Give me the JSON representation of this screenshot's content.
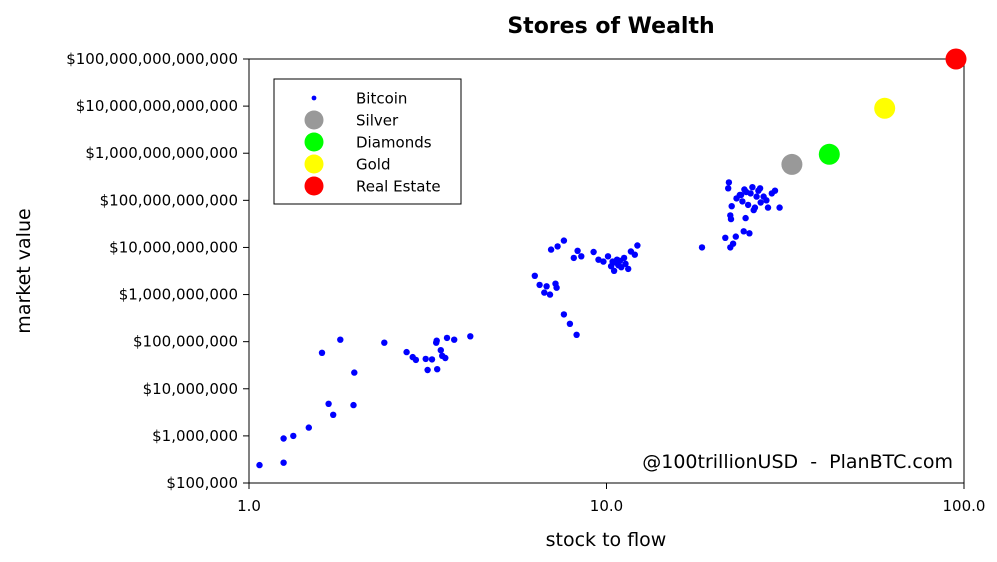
{
  "chart_data": {
    "type": "scatter",
    "title": "Stores of Wealth",
    "xlabel": "stock to flow",
    "ylabel": "market value",
    "xscale": "log",
    "yscale": "log",
    "xlim": [
      1.0,
      100.0
    ],
    "ylim": [
      100000,
      100000000000000
    ],
    "x_ticks": [
      {
        "value": 1.0,
        "label": "1.0"
      },
      {
        "value": 10.0,
        "label": "10.0"
      },
      {
        "value": 100.0,
        "label": "100.0"
      }
    ],
    "y_ticks": [
      {
        "value": 100000,
        "label": "$100,000"
      },
      {
        "value": 1000000,
        "label": "$1,000,000"
      },
      {
        "value": 10000000,
        "label": "$10,000,000"
      },
      {
        "value": 100000000,
        "label": "$100,000,000"
      },
      {
        "value": 1000000000,
        "label": "$1,000,000,000"
      },
      {
        "value": 10000000000,
        "label": "$10,000,000,000"
      },
      {
        "value": 100000000000,
        "label": "$100,000,000,000"
      },
      {
        "value": 1000000000000,
        "label": "$1,000,000,000,000"
      },
      {
        "value": 10000000000000,
        "label": "$10,000,000,000,000"
      },
      {
        "value": 100000000000000,
        "label": "$100,000,000,000,000"
      }
    ],
    "grid": false,
    "legend_position": "top-left",
    "annotation": "@100trillionUSD  -  PlanBTC.com",
    "series": [
      {
        "name": "Bitcoin",
        "color": "#0000ff",
        "marker": "small",
        "points": [
          [
            1.07,
            240000
          ],
          [
            1.25,
            270000
          ],
          [
            1.25,
            880000
          ],
          [
            1.33,
            1000000
          ],
          [
            1.47,
            1500000
          ],
          [
            1.67,
            4800000
          ],
          [
            1.72,
            2800000
          ],
          [
            1.96,
            4500000
          ],
          [
            1.97,
            22000000
          ],
          [
            1.6,
            58000000
          ],
          [
            1.8,
            110000000
          ],
          [
            2.39,
            95000000
          ],
          [
            2.76,
            60000000
          ],
          [
            2.87,
            47000000
          ],
          [
            2.93,
            41000000
          ],
          [
            3.12,
            43000000
          ],
          [
            3.16,
            25000000
          ],
          [
            3.25,
            42000000
          ],
          [
            3.34,
            95000000
          ],
          [
            3.35,
            105000000
          ],
          [
            3.36,
            26000000
          ],
          [
            3.44,
            66000000
          ],
          [
            3.47,
            50000000
          ],
          [
            3.54,
            45000000
          ],
          [
            3.58,
            120000000
          ],
          [
            3.75,
            110000000
          ],
          [
            4.16,
            130000000
          ],
          [
            6.3,
            2500000000
          ],
          [
            6.5,
            1600000000
          ],
          [
            6.7,
            1100000000
          ],
          [
            6.8,
            1500000000
          ],
          [
            6.95,
            1000000000
          ],
          [
            7.2,
            1700000000
          ],
          [
            7.25,
            1400000000
          ],
          [
            7.0,
            9000000000
          ],
          [
            7.3,
            10500000000
          ],
          [
            7.6,
            14000000000
          ],
          [
            7.6,
            380000000
          ],
          [
            7.9,
            240000000
          ],
          [
            8.25,
            140000000
          ],
          [
            8.1,
            6000000000
          ],
          [
            8.3,
            8500000000
          ],
          [
            8.5,
            6500000000
          ],
          [
            9.2,
            8000000000
          ],
          [
            9.5,
            5500000000
          ],
          [
            9.8,
            5000000000
          ],
          [
            10.1,
            6500000000
          ],
          [
            10.3,
            4000000000
          ],
          [
            10.4,
            5000000000
          ],
          [
            10.5,
            3200000000
          ],
          [
            10.7,
            5500000000
          ],
          [
            10.8,
            4200000000
          ],
          [
            11.0,
            3800000000
          ],
          [
            11.2,
            6000000000
          ],
          [
            11.3,
            4500000000
          ],
          [
            11.5,
            3500000000
          ],
          [
            11.7,
            8200000000
          ],
          [
            12.0,
            7000000000
          ],
          [
            12.2,
            11000000000
          ],
          [
            10.6,
            4800000000
          ],
          [
            10.9,
            5200000000
          ],
          [
            18.5,
            10000000000
          ],
          [
            21.5,
            16000000000
          ],
          [
            22.2,
            10000000000
          ],
          [
            22.6,
            12000000000
          ],
          [
            23.0,
            17000000000
          ],
          [
            24.2,
            22000000000
          ],
          [
            25.1,
            20000000000
          ],
          [
            21.9,
            180000000000
          ],
          [
            22.0,
            240000000000
          ],
          [
            22.4,
            75000000000
          ],
          [
            22.2,
            48000000000
          ],
          [
            22.3,
            40000000000
          ],
          [
            23.1,
            110000000000
          ],
          [
            23.6,
            130000000000
          ],
          [
            24.0,
            95000000000
          ],
          [
            24.3,
            170000000000
          ],
          [
            24.5,
            42000000000
          ],
          [
            24.9,
            80000000000
          ],
          [
            25.3,
            140000000000
          ],
          [
            25.6,
            190000000000
          ],
          [
            26.0,
            70000000000
          ],
          [
            26.3,
            120000000000
          ],
          [
            26.6,
            160000000000
          ],
          [
            27.0,
            90000000000
          ],
          [
            27.5,
            120000000000
          ],
          [
            28.3,
            70000000000
          ],
          [
            29.0,
            140000000000
          ],
          [
            29.6,
            160000000000
          ],
          [
            30.5,
            70000000000
          ],
          [
            28.0,
            100000000000
          ],
          [
            25.8,
            62000000000
          ],
          [
            24.6,
            150000000000
          ],
          [
            26.9,
            180000000000
          ],
          [
            23.8,
            130000000000
          ]
        ]
      },
      {
        "name": "Silver",
        "color": "#999999",
        "marker": "large",
        "points": [
          [
            33.0,
            580000000000
          ]
        ]
      },
      {
        "name": "Diamonds",
        "color": "#00ff00",
        "marker": "large",
        "points": [
          [
            42.0,
            950000000000
          ]
        ]
      },
      {
        "name": "Gold",
        "color": "#ffff00",
        "marker": "large",
        "points": [
          [
            60.0,
            9000000000000
          ]
        ]
      },
      {
        "name": "Real Estate",
        "color": "#ff0000",
        "marker": "large",
        "points": [
          [
            95.0,
            100000000000000
          ]
        ]
      }
    ]
  }
}
